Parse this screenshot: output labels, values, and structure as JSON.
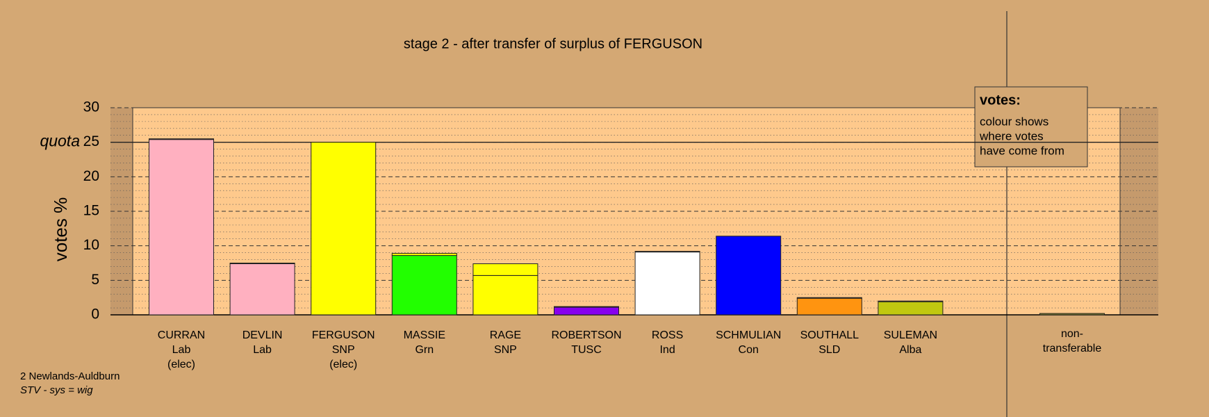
{
  "chart_data": {
    "type": "stv-bar",
    "title": "stage 2 - after transfer of surplus of FERGUSON",
    "ylabel": "votes %",
    "ylim": [
      0,
      30
    ],
    "yticks": [
      0,
      5,
      10,
      15,
      20,
      25,
      30
    ],
    "quota": {
      "value": 25,
      "label": "quota"
    },
    "category_lines": [
      [
        "CURRAN",
        "Lab",
        "(elec)"
      ],
      [
        "DEVLIN",
        "Lab"
      ],
      [
        "FERGUSON",
        "SNP",
        "(elec)"
      ],
      [
        "MASSIE",
        "Grn"
      ],
      [
        "RAGE",
        "SNP"
      ],
      [
        "ROBERTSON",
        "TUSC"
      ],
      [
        "ROSS",
        "Ind"
      ],
      [
        "SCHMULIAN",
        "Con"
      ],
      [
        "SOUTHALL",
        "SLD"
      ],
      [
        "SULEMAN",
        "Alba"
      ],
      [
        "non-",
        "transferable"
      ]
    ],
    "colors": [
      "#ffb0c0",
      "#ffb0c0",
      "#ffff00",
      "#22ff00",
      "#ffff00",
      "#8800ee",
      "#ffffff",
      "#0000ff",
      "#ff9410",
      "#c0c810",
      "#8a8a30"
    ],
    "values": [
      25.4,
      7.4,
      25,
      8.6,
      5.7,
      1.1,
      9.1,
      11.4,
      2.4,
      1.9,
      0.2
    ],
    "transfer_values": [
      0.1,
      0.1,
      0,
      0.3,
      1.7,
      0.1,
      0.1,
      0,
      0.1,
      0.1,
      0
    ],
    "transfer_color": "#ffff00",
    "legend": {
      "title": "votes:",
      "lines": [
        "colour shows",
        "where votes",
        "have come from"
      ]
    },
    "footer": [
      "2 Newlands-Auldburn",
      "STV - sys = wig"
    ]
  }
}
